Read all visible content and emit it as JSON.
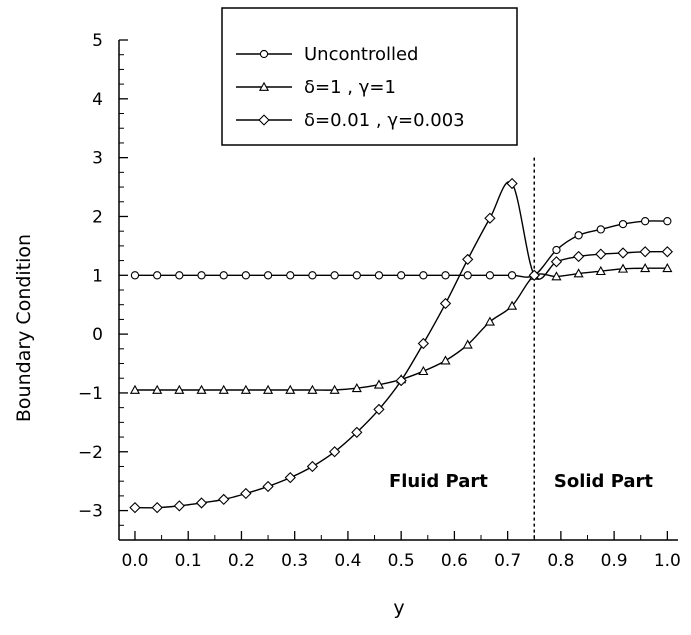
{
  "chart_data": {
    "type": "line",
    "xlabel": "y",
    "ylabel": "Boundary Condition",
    "xlim": [
      -0.03,
      1.02
    ],
    "ylim": [
      -3.5,
      5
    ],
    "xticks": [
      0.0,
      0.1,
      0.2,
      0.3,
      0.4,
      0.5,
      0.6,
      0.7,
      0.8,
      0.9,
      1.0
    ],
    "xtick_labels": [
      "0.0",
      "0.1",
      "0.2",
      "0.3",
      "0.4",
      "0.5",
      "0.6",
      "0.7",
      "0.8",
      "0.9",
      "1.0"
    ],
    "yticks": [
      -3,
      -2,
      -1,
      0,
      1,
      2,
      3,
      4,
      5
    ],
    "ytick_labels": [
      "−3",
      "−2",
      "−1",
      "0",
      "1",
      "2",
      "3",
      "4",
      "5"
    ],
    "grid": false,
    "legend_position": "top-center",
    "divider_x": 0.75,
    "annotations": [
      {
        "text": "Fluid Part",
        "x": 0.57,
        "y": -2.5
      },
      {
        "text": "Solid Part",
        "x": 0.88,
        "y": -2.5
      }
    ],
    "series": [
      {
        "name": "Uncontrolled",
        "marker": "circle",
        "x": [
          0.0,
          0.0417,
          0.0833,
          0.125,
          0.1667,
          0.2083,
          0.25,
          0.2917,
          0.3333,
          0.375,
          0.4167,
          0.4583,
          0.5,
          0.5417,
          0.5833,
          0.625,
          0.6667,
          0.7083,
          0.75,
          0.7917,
          0.8333,
          0.875,
          0.9167,
          0.9583,
          1.0
        ],
        "y": [
          1,
          1,
          1,
          1,
          1,
          1,
          1,
          1,
          1,
          1,
          1,
          1,
          1,
          1,
          1,
          1,
          1,
          1,
          1,
          1.43,
          1.68,
          1.78,
          1.87,
          1.92,
          1.92
        ]
      },
      {
        "name": "δ=1 , γ=1",
        "marker": "triangle",
        "x": [
          0.0,
          0.0417,
          0.0833,
          0.125,
          0.1667,
          0.2083,
          0.25,
          0.2917,
          0.3333,
          0.375,
          0.4167,
          0.4583,
          0.5,
          0.5417,
          0.5833,
          0.625,
          0.6667,
          0.7083,
          0.75,
          0.7917,
          0.8333,
          0.875,
          0.9167,
          0.9583,
          1.0
        ],
        "y": [
          -0.95,
          -0.95,
          -0.95,
          -0.95,
          -0.95,
          -0.95,
          -0.95,
          -0.95,
          -0.95,
          -0.95,
          -0.92,
          -0.86,
          -0.77,
          -0.63,
          -0.45,
          -0.18,
          0.21,
          0.48,
          0.99,
          0.98,
          1.03,
          1.07,
          1.11,
          1.12,
          1.12
        ]
      },
      {
        "name": "δ=0.01 , γ=0.003",
        "marker": "diamond",
        "x": [
          0.0,
          0.0417,
          0.0833,
          0.125,
          0.1667,
          0.2083,
          0.25,
          0.2917,
          0.3333,
          0.375,
          0.4167,
          0.4583,
          0.5,
          0.5417,
          0.5833,
          0.625,
          0.6667,
          0.7083,
          0.75,
          0.7917,
          0.8333,
          0.875,
          0.9167,
          0.9583,
          1.0
        ],
        "y": [
          -2.95,
          -2.95,
          -2.92,
          -2.87,
          -2.81,
          -2.71,
          -2.59,
          -2.44,
          -2.25,
          -2.0,
          -1.67,
          -1.28,
          -0.79,
          -0.16,
          0.52,
          1.27,
          1.97,
          2.56,
          1.0,
          1.23,
          1.32,
          1.36,
          1.38,
          1.4,
          1.4
        ]
      }
    ]
  }
}
